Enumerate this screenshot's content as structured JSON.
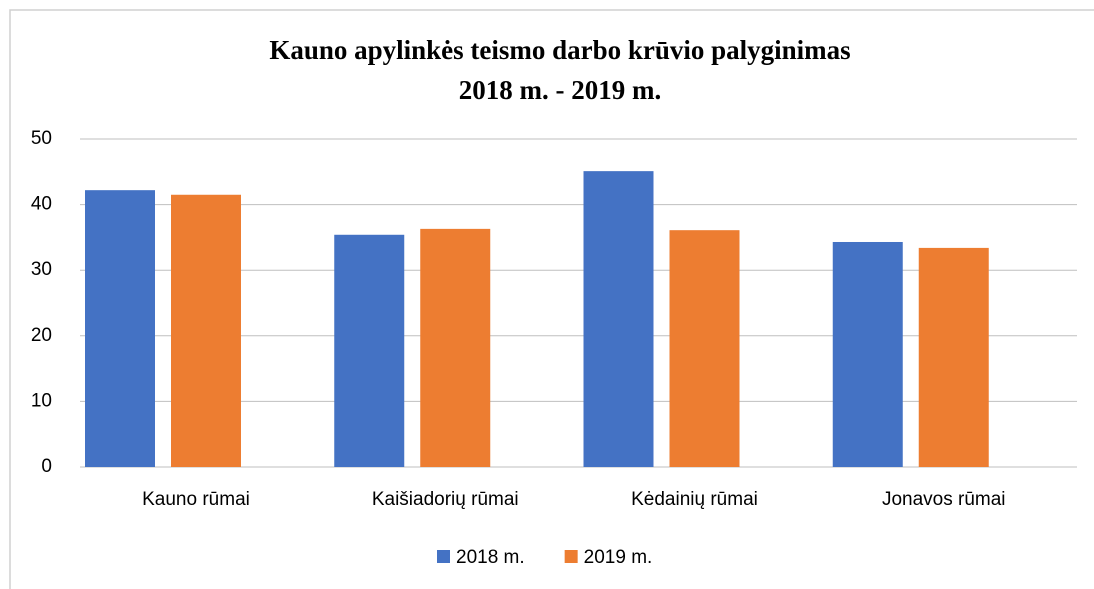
{
  "chart_data": {
    "type": "bar",
    "title": [
      "Kauno apylinkės teismo darbo krūvio palyginimas",
      "2018 m. - 2019 m."
    ],
    "categories": [
      "Kauno rūmai",
      "Kaišiadorių rūmai",
      "Kėdainių rūmai",
      "Jonavos rūmai"
    ],
    "series": [
      {
        "name": "2018 m.",
        "color": "#4472c4",
        "values": [
          42.2,
          35.4,
          45.1,
          34.3
        ]
      },
      {
        "name": "2019 m.",
        "color": "#ed7d31",
        "values": [
          41.5,
          36.3,
          36.1,
          33.4
        ]
      }
    ],
    "ylim": [
      0,
      50
    ],
    "yticks": [
      0,
      10,
      20,
      30,
      40,
      50
    ],
    "grid": true,
    "legend": "bottom"
  }
}
